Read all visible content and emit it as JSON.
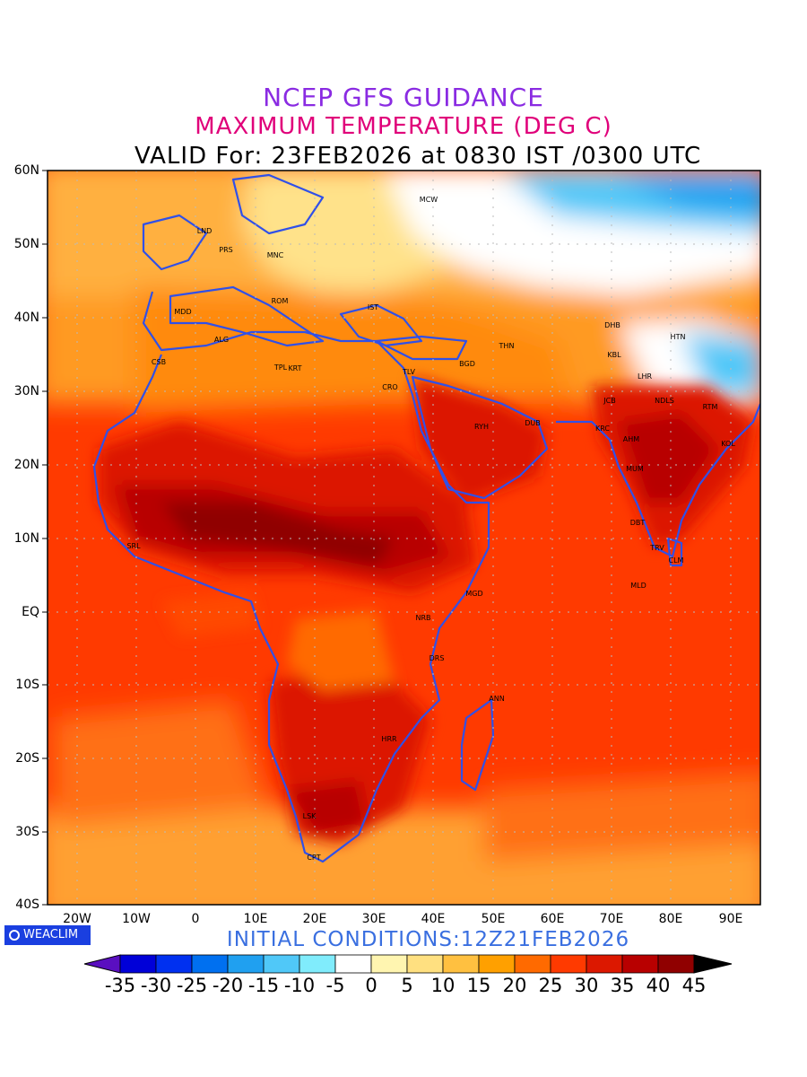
{
  "titles": {
    "line1": "NCEP GFS GUIDANCE",
    "line2": "MAXIMUM TEMPERATURE (DEG C)",
    "line3": "VALID For: 23FEB2026 at 0830 IST /0300 UTC"
  },
  "lat_labels": [
    "60N",
    "50N",
    "40N",
    "30N",
    "20N",
    "10N",
    "EQ",
    "10S",
    "20S",
    "30S",
    "40S"
  ],
  "lon_labels": [
    "20W",
    "10W",
    "0",
    "10E",
    "20E",
    "30E",
    "40E",
    "50E",
    "60E",
    "70E",
    "80E",
    "90E"
  ],
  "logo_text": "WEACLIM",
  "initial_conditions": "INITIAL CONDITIONS:12Z21FEB2026",
  "legend": {
    "labels": [
      "-35",
      "-30",
      "-25",
      "-20",
      "-15",
      "-10",
      "-5",
      "0",
      "5",
      "10",
      "15",
      "20",
      "25",
      "30",
      "35",
      "40",
      "45"
    ],
    "colors": [
      "#5a0fc0",
      "#0000d8",
      "#0030f0",
      "#0070f0",
      "#20a0f0",
      "#50c8f8",
      "#80ecfc",
      "#ffffff",
      "#fff5b0",
      "#ffe080",
      "#ffc040",
      "#ffa000",
      "#ff6a00",
      "#ff3a00",
      "#dc1800",
      "#b80000",
      "#900000",
      "#000000"
    ]
  },
  "stations": [
    {
      "code": "MCW"
    },
    {
      "code": "LND"
    },
    {
      "code": "PRS"
    },
    {
      "code": "MNC"
    },
    {
      "code": "MDD"
    },
    {
      "code": "ROM"
    },
    {
      "code": "IST"
    },
    {
      "code": "ALG"
    },
    {
      "code": "CSB"
    },
    {
      "code": "TPL"
    },
    {
      "code": "KRT"
    },
    {
      "code": "TLV"
    },
    {
      "code": "CRO"
    },
    {
      "code": "BGD"
    },
    {
      "code": "THN"
    },
    {
      "code": "DHB"
    },
    {
      "code": "HTN"
    },
    {
      "code": "KBL"
    },
    {
      "code": "LHR"
    },
    {
      "code": "JCB"
    },
    {
      "code": "NDLS"
    },
    {
      "code": "RTM"
    },
    {
      "code": "RYH"
    },
    {
      "code": "DUB"
    },
    {
      "code": "KRC"
    },
    {
      "code": "AHM"
    },
    {
      "code": "KOL"
    },
    {
      "code": "MUM"
    },
    {
      "code": "DBT"
    },
    {
      "code": "TRV"
    },
    {
      "code": "CLM"
    },
    {
      "code": "MLD"
    },
    {
      "code": "SRL"
    },
    {
      "code": "MGD"
    },
    {
      "code": "NRB"
    },
    {
      "code": "DRS"
    },
    {
      "code": "ANN"
    },
    {
      "code": "HRR"
    },
    {
      "code": "LSK"
    },
    {
      "code": "CPT"
    }
  ],
  "map_data": {
    "lon_range": [
      -25,
      95
    ],
    "lat_range": [
      -40,
      60
    ],
    "field": "maximum temperature (deg C)",
    "regions_tmax": {
      "europe": 10,
      "north_russia": -5,
      "siberia_north": -15,
      "tibet": -10,
      "sahara_north": 20,
      "sahel_west_africa": 38,
      "central_africa": 35,
      "india": 35,
      "arabia": 32,
      "equatorial_ocean": 28,
      "south_ocean": 22
    }
  }
}
